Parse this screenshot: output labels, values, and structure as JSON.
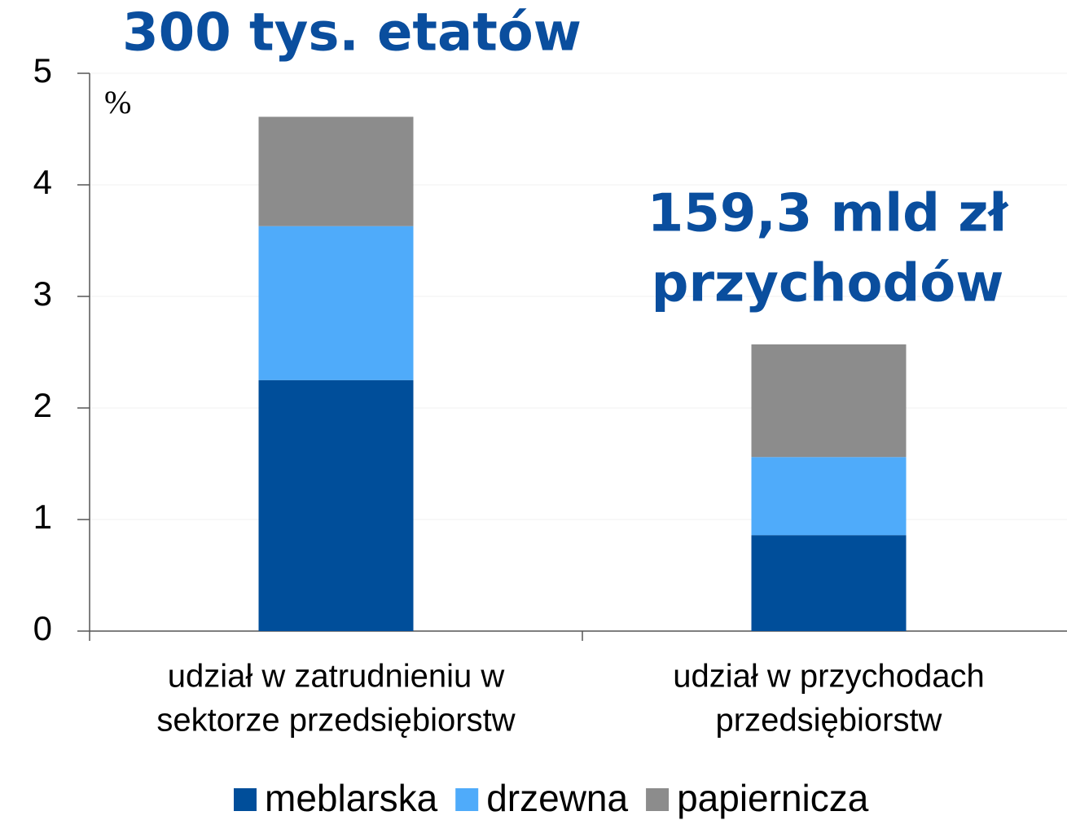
{
  "chart_data": {
    "type": "stacked_bar",
    "unit_label": "%",
    "categories": [
      [
        "udział w zatrudnieniu w",
        "sektorze przedsiębiorstw"
      ],
      [
        "udział w przychodach",
        "przedsiębiorstw"
      ]
    ],
    "series": [
      {
        "name": "meblarska",
        "color": "#004e9a",
        "values": [
          2.25,
          0.86
        ]
      },
      {
        "name": "drzewna",
        "color": "#4fabfa",
        "values": [
          1.38,
          0.7
        ]
      },
      {
        "name": "papiernicza",
        "color": "#8c8c8c",
        "values": [
          0.98,
          1.01
        ]
      }
    ],
    "annotations": [
      {
        "lines": [
          "300 tys. etatów"
        ]
      },
      {
        "lines": [
          "159,3 mld zł",
          "przychodów"
        ]
      }
    ],
    "ylim": [
      0,
      5
    ],
    "yticks": [
      0,
      1,
      2,
      3,
      4,
      5
    ],
    "grid": true,
    "legend": "bottom"
  }
}
